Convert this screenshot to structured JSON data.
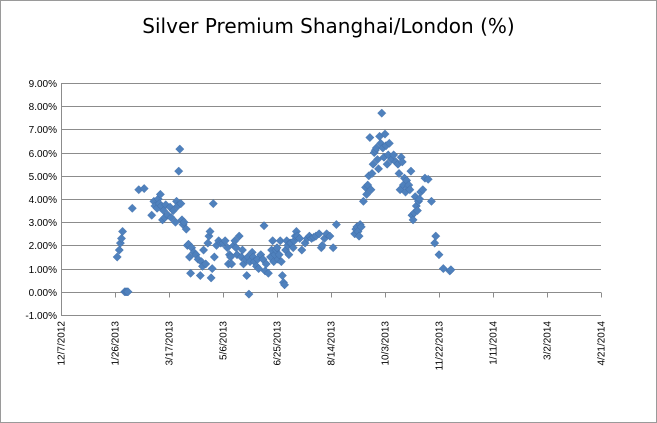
{
  "chart_data": {
    "type": "scatter",
    "title": "Silver Premium Shanghai/London (%)",
    "xlabel": "",
    "ylabel": "",
    "marker": "diamond",
    "color": "#4F81BD",
    "grid": true,
    "legend": "none",
    "xlim": [
      "12/7/2012",
      "4/21/2014"
    ],
    "ylim": [
      -1.0,
      9.0
    ],
    "x_ticks": [
      "12/7/2012",
      "1/26/2013",
      "3/17/2013",
      "5/6/2013",
      "6/25/2013",
      "8/14/2013",
      "10/3/2013",
      "11/22/2013",
      "1/11/2014",
      "3/2/2014",
      "4/21/2014"
    ],
    "y_ticks": [
      "-1.00%",
      "0.00%",
      "1.00%",
      "2.00%",
      "3.00%",
      "4.00%",
      "5.00%",
      "6.00%",
      "7.00%",
      "8.00%",
      "9.00%"
    ],
    "y_tick_values": [
      -1,
      0,
      1,
      2,
      3,
      4,
      5,
      6,
      7,
      8,
      9
    ],
    "points": [
      [
        "1/28/2013",
        1.5
      ],
      [
        "1/30/2013",
        1.8
      ],
      [
        "1/31/2013",
        2.1
      ],
      [
        "2/1/2013",
        2.3
      ],
      [
        "2/2/2013",
        2.6
      ],
      [
        "2/4/2013",
        0.0
      ],
      [
        "2/5/2013",
        0.0
      ],
      [
        "2/6/2013",
        0.0
      ],
      [
        "2/7/2013",
        0.0
      ],
      [
        "2/11/2013",
        3.6
      ],
      [
        "2/17/2013",
        4.4
      ],
      [
        "2/22/2013",
        4.45
      ],
      [
        "3/1/2013",
        3.3
      ],
      [
        "3/3/2013",
        3.9
      ],
      [
        "3/4/2013",
        3.7
      ],
      [
        "3/6/2013",
        3.6
      ],
      [
        "3/7/2013",
        4.0
      ],
      [
        "3/8/2013",
        3.8
      ],
      [
        "3/9/2013",
        4.2
      ],
      [
        "3/10/2013",
        3.7
      ],
      [
        "3/11/2013",
        3.1
      ],
      [
        "3/12/2013",
        3.5
      ],
      [
        "3/13/2013",
        3.2
      ],
      [
        "3/14/2013",
        3.75
      ],
      [
        "3/16/2013",
        3.3
      ],
      [
        "3/18/2013",
        3.65
      ],
      [
        "3/19/2013",
        3.2
      ],
      [
        "3/21/2013",
        3.5
      ],
      [
        "3/23/2013",
        3.0
      ],
      [
        "3/24/2013",
        3.9
      ],
      [
        "3/25/2013",
        3.7
      ],
      [
        "3/26/2013",
        5.2
      ],
      [
        "3/27/2013",
        6.15
      ],
      [
        "3/28/2013",
        3.8
      ],
      [
        "3/29/2013",
        3.1
      ],
      [
        "3/30/2013",
        2.9
      ],
      [
        "3/31/2013",
        3.0
      ],
      [
        "4/2/2013",
        2.7
      ],
      [
        "4/3/2013",
        2.0
      ],
      [
        "4/4/2013",
        2.05
      ],
      [
        "4/5/2013",
        1.5
      ],
      [
        "4/6/2013",
        0.8
      ],
      [
        "4/7/2013",
        1.9
      ],
      [
        "4/9/2013",
        1.7
      ],
      [
        "4/11/2013",
        1.6
      ],
      [
        "4/13/2013",
        1.4
      ],
      [
        "4/15/2013",
        0.7
      ],
      [
        "4/16/2013",
        1.3
      ],
      [
        "4/17/2013",
        1.1
      ],
      [
        "4/18/2013",
        1.8
      ],
      [
        "4/20/2013",
        1.2
      ],
      [
        "4/22/2013",
        2.1
      ],
      [
        "4/23/2013",
        2.4
      ],
      [
        "4/24/2013",
        2.6
      ],
      [
        "4/25/2013",
        0.6
      ],
      [
        "4/26/2013",
        1.0
      ],
      [
        "4/27/2013",
        3.8
      ],
      [
        "4/28/2013",
        1.5
      ],
      [
        "4/30/2013",
        2.0
      ],
      [
        "5/2/2013",
        2.2
      ],
      [
        "5/4/2013",
        2.1
      ],
      [
        "5/6/2013",
        2.1
      ],
      [
        "5/8/2013",
        2.2
      ],
      [
        "5/10/2013",
        1.9
      ],
      [
        "5/11/2013",
        1.2
      ],
      [
        "5/12/2013",
        1.6
      ],
      [
        "5/13/2013",
        1.5
      ],
      [
        "5/14/2013",
        1.2
      ],
      [
        "5/16/2013",
        2.0
      ],
      [
        "5/17/2013",
        2.2
      ],
      [
        "5/18/2013",
        1.9
      ],
      [
        "5/19/2013",
        1.6
      ],
      [
        "5/21/2013",
        2.4
      ],
      [
        "5/23/2013",
        1.5
      ],
      [
        "5/24/2013",
        1.8
      ],
      [
        "5/25/2013",
        1.2
      ],
      [
        "5/27/2013",
        1.4
      ],
      [
        "5/28/2013",
        0.7
      ],
      [
        "5/29/2013",
        1.5
      ],
      [
        "5/30/2013",
        -0.1
      ],
      [
        "5/31/2013",
        1.3
      ],
      [
        "6/2/2013",
        1.7
      ],
      [
        "6/3/2013",
        1.5
      ],
      [
        "6/4/2013",
        1.3
      ],
      [
        "6/6/2013",
        1.1
      ],
      [
        "6/7/2013",
        1.4
      ],
      [
        "6/8/2013",
        1.0
      ],
      [
        "6/10/2013",
        1.6
      ],
      [
        "6/12/2013",
        1.4
      ],
      [
        "6/13/2013",
        2.85
      ],
      [
        "6/14/2013",
        0.9
      ],
      [
        "6/15/2013",
        1.2
      ],
      [
        "6/17/2013",
        0.8
      ],
      [
        "6/19/2013",
        1.5
      ],
      [
        "6/20/2013",
        1.8
      ],
      [
        "6/21/2013",
        2.2
      ],
      [
        "6/22/2013",
        1.3
      ],
      [
        "6/23/2013",
        1.6
      ],
      [
        "6/24/2013",
        1.8
      ],
      [
        "6/25/2013",
        1.9
      ],
      [
        "6/26/2013",
        1.4
      ],
      [
        "6/27/2013",
        1.6
      ],
      [
        "6/28/2013",
        2.2
      ],
      [
        "6/29/2013",
        1.3
      ],
      [
        "6/30/2013",
        0.7
      ],
      [
        "7/1/2013",
        0.4
      ],
      [
        "7/2/2013",
        0.3
      ],
      [
        "7/3/2013",
        1.8
      ],
      [
        "7/4/2013",
        2.2
      ],
      [
        "7/5/2013",
        2.0
      ],
      [
        "7/6/2013",
        1.6
      ],
      [
        "7/7/2013",
        2.1
      ],
      [
        "7/8/2013",
        2.1
      ],
      [
        "7/10/2013",
        1.9
      ],
      [
        "7/11/2013",
        2.2
      ],
      [
        "7/12/2013",
        2.4
      ],
      [
        "7/13/2013",
        2.6
      ],
      [
        "7/14/2013",
        2.4
      ],
      [
        "7/16/2013",
        2.3
      ],
      [
        "7/18/2013",
        1.8
      ],
      [
        "7/21/2013",
        2.1
      ],
      [
        "7/23/2013",
        2.3
      ],
      [
        "7/25/2013",
        2.4
      ],
      [
        "7/27/2013",
        2.3
      ],
      [
        "7/29/2013",
        2.35
      ],
      [
        "7/31/2013",
        2.4
      ],
      [
        "8/3/2013",
        2.5
      ],
      [
        "8/5/2013",
        1.9
      ],
      [
        "8/6/2013",
        2.0
      ],
      [
        "8/8/2013",
        2.3
      ],
      [
        "8/10/2013",
        2.5
      ],
      [
        "8/13/2013",
        2.4
      ],
      [
        "8/16/2013",
        1.9
      ],
      [
        "8/19/2013",
        2.9
      ],
      [
        "9/5/2013",
        2.5
      ],
      [
        "9/6/2013",
        2.7
      ],
      [
        "9/7/2013",
        2.8
      ],
      [
        "9/8/2013",
        2.6
      ],
      [
        "9/9/2013",
        2.4
      ],
      [
        "9/10/2013",
        2.9
      ],
      [
        "9/11/2013",
        2.8
      ],
      [
        "9/13/2013",
        3.9
      ],
      [
        "9/15/2013",
        4.5
      ],
      [
        "9/16/2013",
        4.2
      ],
      [
        "9/17/2013",
        4.6
      ],
      [
        "9/18/2013",
        5.0
      ],
      [
        "9/19/2013",
        6.65
      ],
      [
        "9/20/2013",
        4.4
      ],
      [
        "9/21/2013",
        5.1
      ],
      [
        "9/22/2013",
        5.5
      ],
      [
        "9/23/2013",
        6.0
      ],
      [
        "9/24/2013",
        6.1
      ],
      [
        "9/25/2013",
        6.2
      ],
      [
        "9/26/2013",
        5.7
      ],
      [
        "9/27/2013",
        5.3
      ],
      [
        "9/28/2013",
        6.7
      ],
      [
        "9/29/2013",
        6.4
      ],
      [
        "9/30/2013",
        7.7
      ],
      [
        "10/1/2013",
        6.2
      ],
      [
        "10/2/2013",
        5.8
      ],
      [
        "10/3/2013",
        6.8
      ],
      [
        "10/4/2013",
        6.3
      ],
      [
        "10/5/2013",
        5.5
      ],
      [
        "10/6/2013",
        5.9
      ],
      [
        "10/7/2013",
        6.4
      ],
      [
        "10/9/2013",
        5.7
      ],
      [
        "10/11/2013",
        5.9
      ],
      [
        "10/13/2013",
        5.6
      ],
      [
        "10/15/2013",
        5.5
      ],
      [
        "10/16/2013",
        5.1
      ],
      [
        "10/17/2013",
        4.4
      ],
      [
        "10/18/2013",
        5.8
      ],
      [
        "10/19/2013",
        5.6
      ],
      [
        "10/20/2013",
        4.6
      ],
      [
        "10/21/2013",
        4.9
      ],
      [
        "10/22/2013",
        4.3
      ],
      [
        "10/23/2013",
        4.8
      ],
      [
        "10/24/2013",
        4.5
      ],
      [
        "10/25/2013",
        4.6
      ],
      [
        "10/26/2013",
        4.4
      ],
      [
        "10/27/2013",
        5.2
      ],
      [
        "10/28/2013",
        3.3
      ],
      [
        "10/29/2013",
        3.1
      ],
      [
        "10/30/2013",
        3.4
      ],
      [
        "10/31/2013",
        4.1
      ],
      [
        "11/1/2013",
        3.7
      ],
      [
        "11/2/2013",
        3.5
      ],
      [
        "11/3/2013",
        3.9
      ],
      [
        "11/4/2013",
        4.0
      ],
      [
        "11/5/2013",
        4.3
      ],
      [
        "11/7/2013",
        4.4
      ],
      [
        "11/9/2013",
        4.9
      ],
      [
        "11/12/2013",
        4.85
      ],
      [
        "11/15/2013",
        3.9
      ],
      [
        "11/18/2013",
        2.1
      ],
      [
        "11/19/2013",
        2.4
      ],
      [
        "11/22/2013",
        1.6
      ],
      [
        "11/26/2013",
        1.0
      ],
      [
        "12/2/2013",
        0.9
      ],
      [
        "12/3/2013",
        0.95
      ]
    ]
  }
}
